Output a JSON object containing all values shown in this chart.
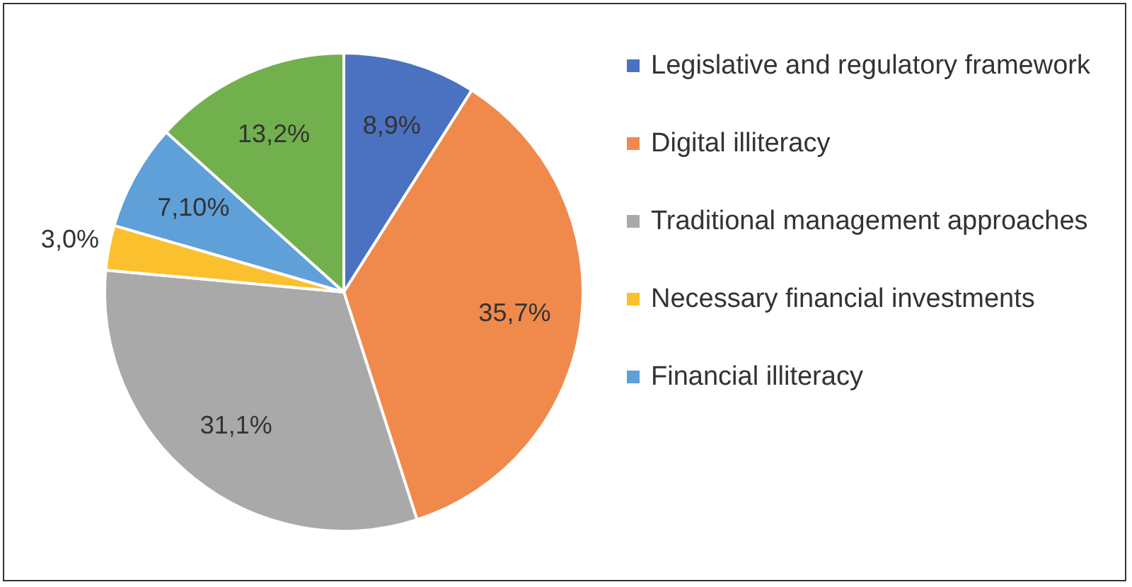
{
  "chart_data": {
    "type": "pie",
    "categories": [
      "Legislative and regulatory framework",
      "Digital illiteracy",
      "Traditional management approaches",
      "Necessary financial investments",
      "Financial illiteracy",
      null
    ],
    "values": [
      8.9,
      35.7,
      31.1,
      3.0,
      7.1,
      13.2
    ],
    "value_labels": [
      "8,9%",
      "35,7%",
      "31,1%",
      "3,0%",
      "7,10%",
      "13,2%"
    ],
    "colors": [
      "#4a72c0",
      "#ef8a4c",
      "#a9a9a9",
      "#fbc02d",
      "#5fa0d8",
      "#72b04e"
    ],
    "legend": "right"
  }
}
